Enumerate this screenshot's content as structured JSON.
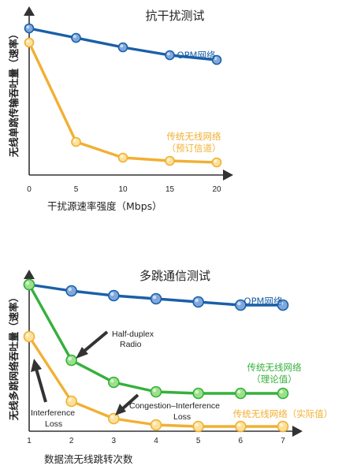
{
  "chart_data": [
    {
      "type": "line",
      "title": "抗干扰测试",
      "xlabel": "干扰源速率强度（Mbps）",
      "ylabel": "无线单跳传输吞吐量（速率）",
      "x": [
        0,
        5,
        10,
        15,
        20
      ],
      "xlim": [
        0,
        20
      ],
      "ylim": [
        0,
        100
      ],
      "grid": false,
      "y_ticks_shown": false,
      "series": [
        {
          "name": "OPM网络",
          "values": [
            93,
            87,
            81,
            76,
            73
          ],
          "color": "#1a5fa8"
        },
        {
          "name": "传统无线网络（预订信道）",
          "values": [
            84,
            21,
            11,
            9,
            8
          ],
          "color": "#f1b033"
        }
      ]
    },
    {
      "type": "line",
      "title": "多跳通信测试",
      "xlabel": "数据流无线跳转次数",
      "ylabel": "无线多跳网络吞吐量（速率）",
      "x": [
        1,
        2,
        3,
        4,
        5,
        6,
        7
      ],
      "xlim": [
        1,
        7
      ],
      "ylim": [
        0,
        100
      ],
      "grid": false,
      "y_ticks_shown": false,
      "series": [
        {
          "name": "OPM网络",
          "values": [
            93,
            89,
            86,
            84,
            82,
            80,
            80
          ],
          "color": "#1a5fa8"
        },
        {
          "name": "传统无线网络（理论值）",
          "values": [
            93,
            45,
            31,
            25,
            24,
            24,
            24
          ],
          "color": "#35b03c"
        },
        {
          "name": "传统无线网络（实际值）",
          "values": [
            60,
            19,
            8,
            4,
            3,
            3,
            3
          ],
          "color": "#f1b033"
        }
      ],
      "annotations": [
        "Half-duplex Radio",
        "Congestion-Interference Loss",
        "Interference Loss"
      ]
    }
  ]
}
